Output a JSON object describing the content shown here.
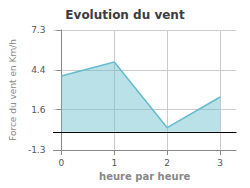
{
  "chart_data": {
    "type": "area",
    "title": "Evolution du vent",
    "xlabel": "heure par heure",
    "ylabel": "Force du vent en Km/h",
    "x": [
      0,
      1,
      2,
      3
    ],
    "values": [
      4.0,
      5.0,
      0.3,
      2.5
    ],
    "color": "#66bbcc",
    "xlim": [
      -0.15,
      3.3
    ],
    "ylim": [
      -1.3,
      7.3
    ],
    "xticks": [
      0,
      1,
      2,
      3
    ],
    "yticks": [
      -1.3,
      1.6,
      4.4,
      7.3
    ],
    "grid": true
  }
}
